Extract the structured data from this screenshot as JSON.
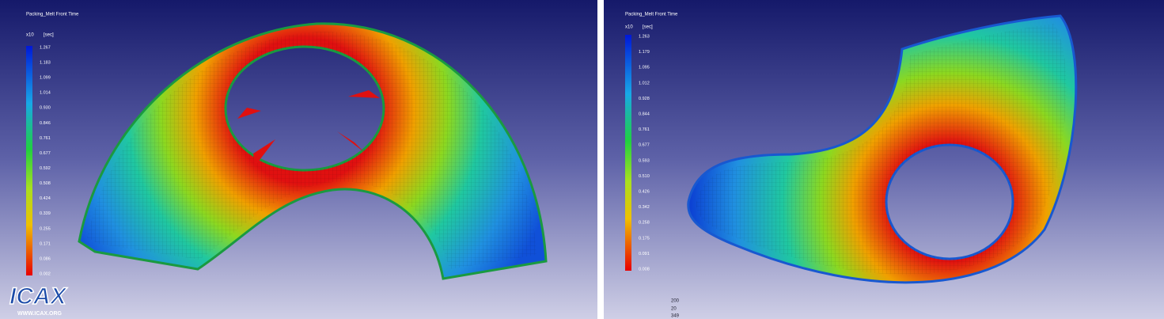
{
  "panels": [
    {
      "title": "Packing_Melt Front Time",
      "scale": "x10",
      "unit": "[sec]",
      "legend": [
        "1.267",
        "1.183",
        "1.099",
        "1.014",
        "0.930",
        "0.846",
        "0.761",
        "0.677",
        "0.592",
        "0.508",
        "0.424",
        "0.339",
        "0.255",
        "0.171",
        "0.086",
        "0.002"
      ]
    },
    {
      "title": "Packing_Melt Front Time",
      "scale": "x10",
      "unit": "[sec]",
      "legend": [
        "1.263",
        "1.179",
        "1.095",
        "1.012",
        "0.928",
        "0.844",
        "0.761",
        "0.677",
        "0.593",
        "0.510",
        "0.426",
        "0.342",
        "0.258",
        "0.175",
        "0.091",
        "0.008"
      ]
    }
  ],
  "logo": {
    "name": "ICAX",
    "url": "WWW.ICAX.ORG"
  },
  "info": [
    "200",
    "20",
    "349"
  ]
}
